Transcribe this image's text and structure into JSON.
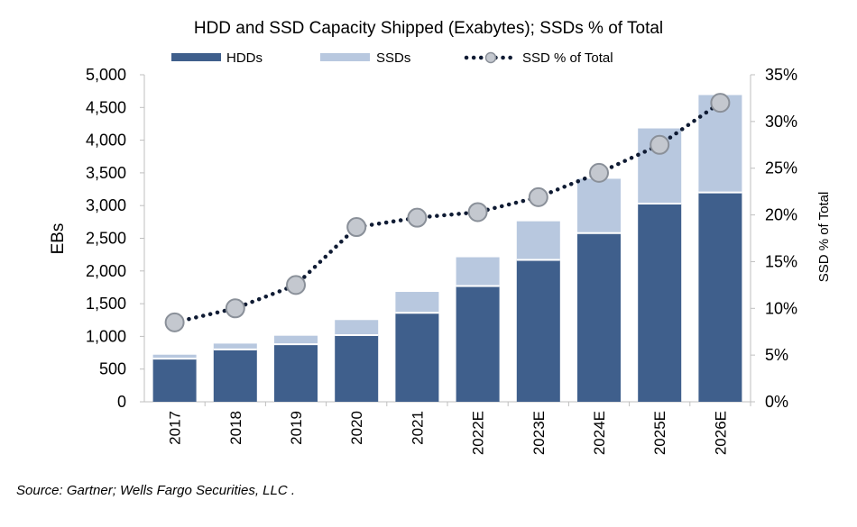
{
  "chart_data": {
    "type": "bar",
    "title": "HDD and SSD Capacity Shipped (Exabytes); SSDs % of Total",
    "categories": [
      "2017",
      "2018",
      "2019",
      "2020",
      "2021",
      "2022E",
      "2023E",
      "2024E",
      "2025E",
      "2026E"
    ],
    "stacked": true,
    "series": [
      {
        "name": "HDDs",
        "type": "bar",
        "axis": "left",
        "color": "#3f5f8c",
        "values": [
          660,
          800,
          880,
          1020,
          1360,
          1770,
          2170,
          2580,
          3030,
          3200
        ]
      },
      {
        "name": "SSDs",
        "type": "bar",
        "axis": "left",
        "color": "#b8c8df",
        "values": [
          60,
          90,
          130,
          230,
          320,
          440,
          590,
          830,
          1150,
          1490
        ]
      },
      {
        "name": "SSD % of Total",
        "type": "line",
        "axis": "right",
        "style": "dotted",
        "marker": "circle",
        "color": "#0f1b33",
        "values": [
          8.5,
          10.0,
          12.5,
          18.7,
          19.7,
          20.3,
          21.9,
          24.5,
          27.5,
          32.0
        ]
      }
    ],
    "ylabel": "EBs",
    "ylabel_right": "SSD % of Total",
    "ylim": [
      0,
      5000
    ],
    "ylim_right": [
      0,
      35
    ],
    "yticks": [
      "0",
      "500",
      "1,000",
      "1,500",
      "2,000",
      "2,500",
      "3,000",
      "3,500",
      "4,000",
      "4,500",
      "5,000"
    ],
    "yticks_right": [
      "0%",
      "5%",
      "10%",
      "15%",
      "20%",
      "25%",
      "30%",
      "35%"
    ],
    "legend_position": "top",
    "grid": false
  },
  "source_note": "Source: Gartner; Wells Fargo Securities, LLC ."
}
